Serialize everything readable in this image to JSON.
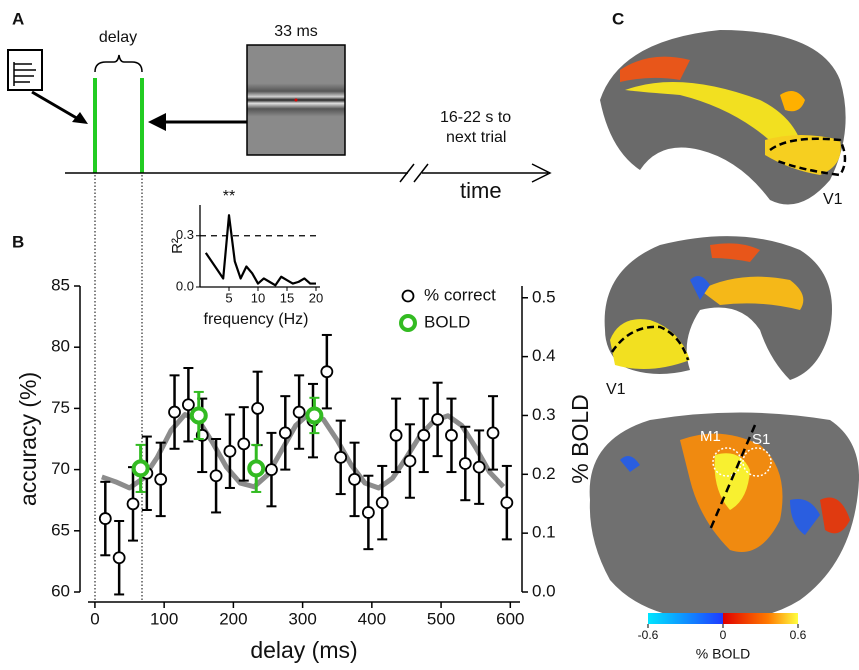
{
  "panel_a": {
    "label": "A",
    "delay": "delay",
    "stimulus_duration": "33 ms",
    "iti": [
      "16-22 s to",
      "next trial"
    ],
    "time": "time"
  },
  "chart_data": [
    {
      "type": "scatter",
      "panel_label": "B",
      "xlabel": "delay (ms)",
      "ylabel": "accuracy (%)",
      "y2label": "% BOLD",
      "xlim": [
        -10,
        614
      ],
      "xticks": [
        0,
        100,
        200,
        300,
        400,
        500,
        600
      ],
      "ylim": [
        60,
        85
      ],
      "yticks": [
        60,
        65,
        70,
        75,
        80,
        85
      ],
      "y2lim": [
        0,
        0.52
      ],
      "y2ticks": [
        {
          "value": 0,
          "label": "0.0"
        },
        0.1,
        0.2,
        0.3,
        0.4,
        0.5
      ],
      "series": [
        {
          "name": "% correct",
          "color": "#000000",
          "x": [
            15,
            35,
            55,
            75,
            95,
            115,
            135,
            155,
            175,
            195,
            215,
            235,
            255,
            275,
            295,
            315,
            335,
            355,
            375,
            395,
            415,
            435,
            455,
            475,
            495,
            515,
            535,
            555,
            575,
            595
          ],
          "values": [
            66.0,
            62.8,
            67.2,
            69.7,
            69.2,
            74.7,
            75.3,
            72.8,
            69.5,
            71.5,
            72.1,
            75.0,
            70.0,
            73.0,
            74.7,
            74.0,
            78.0,
            71.0,
            69.2,
            66.5,
            67.3,
            72.8,
            70.7,
            72.8,
            74.1,
            72.8,
            70.5,
            70.2,
            73.0,
            67.3
          ],
          "errors": [
            3,
            3,
            3,
            3,
            3,
            3,
            3,
            3,
            3,
            3,
            3,
            3,
            3,
            3,
            3,
            3,
            3,
            3,
            3,
            3,
            3,
            3,
            3,
            3,
            3,
            3,
            3,
            3,
            3,
            3
          ]
        },
        {
          "name": "BOLD",
          "color": "#33bb22",
          "axis": "y2",
          "x": [
            66,
            150,
            233,
            317
          ],
          "values": [
            0.21,
            0.3,
            0.21,
            0.3
          ],
          "errors": [
            0.04,
            0.04,
            0.04,
            0.03
          ]
        }
      ],
      "fit": {
        "color": "#8c8c8c",
        "x": [
          10,
          30,
          50,
          70,
          90,
          110,
          130,
          150,
          170,
          190,
          210,
          230,
          250,
          270,
          290,
          310,
          330,
          350,
          370,
          390,
          410,
          430,
          450,
          470,
          490,
          510,
          530,
          550,
          570,
          590
        ],
        "values": [
          69.4,
          69.0,
          68.5,
          69.3,
          71.0,
          73.2,
          74.5,
          74.0,
          72.2,
          70.2,
          68.9,
          68.6,
          69.6,
          71.6,
          73.6,
          74.6,
          74.1,
          72.4,
          70.4,
          68.9,
          68.5,
          69.3,
          71.0,
          72.8,
          74.0,
          74.4,
          73.6,
          71.8,
          69.8,
          68.6
        ]
      }
    },
    {
      "type": "line",
      "xlabel": "frequency (Hz)",
      "ylabel": "R²",
      "annotation": "**",
      "xlim": [
        0,
        20
      ],
      "xticks": [
        5,
        10,
        15,
        20
      ],
      "ylim": [
        0,
        0.48
      ],
      "yticks": [
        {
          "value": 0,
          "label": "0.0"
        },
        0.3
      ],
      "hline": 0.3,
      "color": "#000000",
      "x": [
        1,
        2,
        3,
        4,
        5,
        6,
        7,
        8,
        9,
        10,
        11,
        12,
        13,
        14,
        15,
        16,
        17,
        18,
        19,
        20
      ],
      "values": [
        0.2,
        0.15,
        0.1,
        0.05,
        0.42,
        0.15,
        0.05,
        0.12,
        0.08,
        0.02,
        0.05,
        0.03,
        0.01,
        0.06,
        0.04,
        0.02,
        0.03,
        0.05,
        0.02,
        0.02
      ]
    }
  ],
  "panel_c": {
    "label": "C",
    "regions": [
      "V1",
      "V1",
      "M1",
      "S1"
    ],
    "colorbar": {
      "ticks": [
        -0.6,
        0,
        0.6
      ],
      "label": "% BOLD"
    }
  }
}
